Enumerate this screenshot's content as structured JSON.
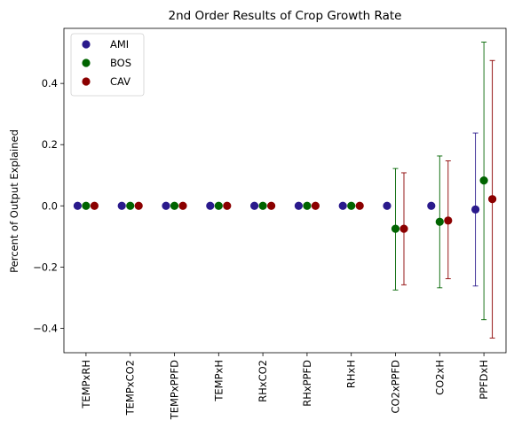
{
  "chart_data": {
    "type": "scatter",
    "title": "2nd Order Results of Crop Growth Rate",
    "xlabel": "",
    "ylabel": "Percent of Output Explained",
    "categories": [
      "TEMPxRH",
      "TEMPxCO2",
      "TEMPxPPFD",
      "TEMPxH",
      "RHxCO2",
      "RHxPPFD",
      "RHxH",
      "CO2xPPFD",
      "CO2xH",
      "PPFDxH"
    ],
    "ylim": [
      -0.48,
      0.58
    ],
    "yticks": [
      -0.4,
      -0.2,
      0.0,
      0.2,
      0.4
    ],
    "ytick_labels": [
      "−0.4",
      "−0.2",
      "0.0",
      "0.2",
      "0.4"
    ],
    "grid": false,
    "legend_position": "top-left",
    "series": [
      {
        "name": "AMI",
        "color": "#2a1a8c",
        "values": [
          0,
          0,
          0,
          0,
          0,
          0,
          0,
          0,
          0,
          -0.012
        ],
        "err_low": [
          0,
          0,
          0,
          0,
          0,
          0,
          0,
          0,
          0,
          -0.262
        ],
        "err_high": [
          0,
          0,
          0,
          0,
          0,
          0,
          0,
          0,
          0,
          0.238
        ]
      },
      {
        "name": "BOS",
        "color": "#006400",
        "values": [
          0,
          0,
          0,
          0,
          0,
          0,
          0,
          -0.075,
          -0.052,
          0.083
        ],
        "err_low": [
          0,
          0,
          0,
          0,
          0,
          0,
          0,
          -0.275,
          -0.268,
          -0.372
        ],
        "err_high": [
          0,
          0,
          0,
          0,
          0,
          0,
          0,
          0.122,
          0.163,
          0.535
        ]
      },
      {
        "name": "CAV",
        "color": "#8b0000",
        "values": [
          0,
          0,
          0,
          0,
          0,
          0,
          0,
          -0.075,
          -0.048,
          0.022
        ],
        "err_low": [
          0,
          0,
          0,
          0,
          0,
          0,
          0,
          -0.258,
          -0.238,
          -0.432
        ],
        "err_high": [
          0,
          0,
          0,
          0,
          0,
          0,
          0,
          0.108,
          0.147,
          0.475
        ]
      }
    ]
  }
}
